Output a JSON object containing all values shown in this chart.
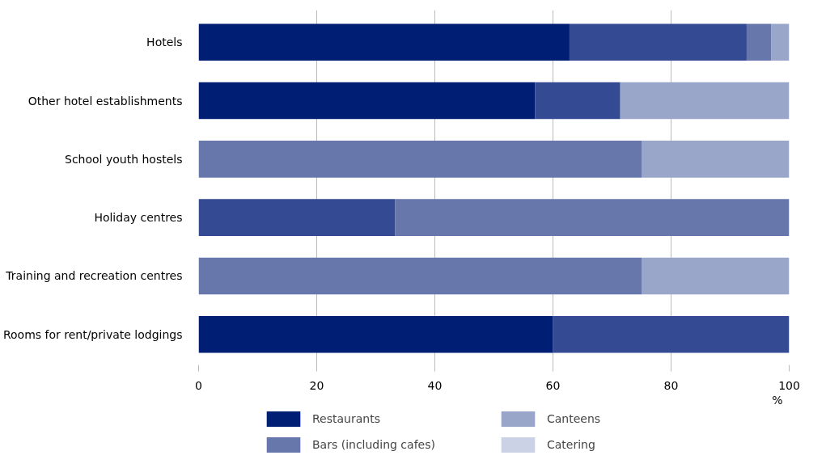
{
  "chart_data": {
    "type": "bar",
    "orientation": "horizontal",
    "stacked": true,
    "xlabel": "%",
    "categories": [
      "Hotels",
      "Other hotel establishments",
      "School youth hostels",
      "Holiday centres",
      "Training and recreation centres",
      "Rooms for rent/private lodgings"
    ],
    "series": [
      {
        "name": "Restaurants",
        "color": "#001e73",
        "values": [
          62.8,
          57.0,
          null,
          null,
          null,
          60
        ]
      },
      {
        "color": "#344a93",
        "values": [
          30.0,
          14.4,
          null,
          33.3,
          null,
          40
        ]
      },
      {
        "name": "Bars (including cafes)",
        "color": "#6777ab",
        "values": [
          4.2,
          null,
          75,
          66.7,
          75,
          null
        ]
      },
      {
        "name": "Canteens",
        "color": "#99a5c9",
        "values": [
          3.0,
          28.6,
          25,
          null,
          25,
          null
        ]
      },
      {
        "name": "Catering",
        "color": "#ccd2e5",
        "values": [
          null,
          null,
          null,
          null,
          null,
          null
        ]
      }
    ],
    "xlim": [
      0,
      100
    ],
    "xticks": [
      0,
      20,
      40,
      60,
      80,
      100
    ],
    "grid": "x",
    "legend": "bottom"
  }
}
